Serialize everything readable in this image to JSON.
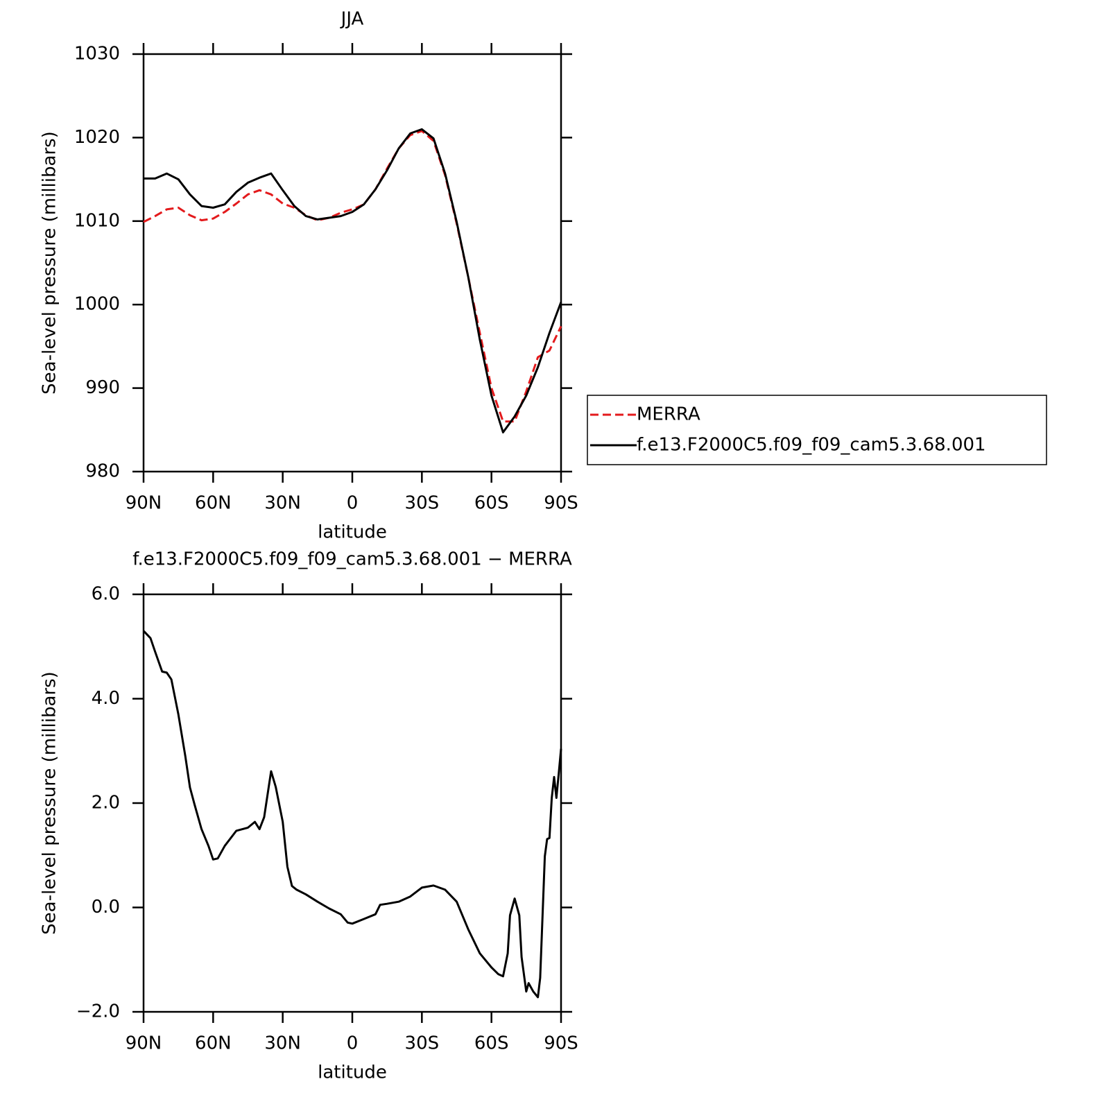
{
  "chart_data": [
    {
      "type": "line",
      "title": "JJA",
      "ylabel": "Sea-level pressure (millibars)",
      "xlabel": "latitude",
      "x": [
        90,
        85,
        80,
        75,
        70,
        65,
        60,
        55,
        50,
        45,
        40,
        35,
        30,
        25,
        20,
        15,
        10,
        5,
        0,
        -5,
        -10,
        -15,
        -20,
        -25,
        -30,
        -35,
        -40,
        -45,
        -50,
        -55,
        -60,
        -65,
        -70,
        -75,
        -80,
        -85,
        -90
      ],
      "series": [
        {
          "name": "MERRA",
          "color": "#e31a1c",
          "dash": "dashed",
          "values": [
            1009.9,
            1010.6,
            1011.4,
            1011.6,
            1010.7,
            1010.1,
            1010.3,
            1011.1,
            1012.1,
            1013.2,
            1013.7,
            1013.2,
            1012.1,
            1011.6,
            1010.7,
            1010.1,
            1010.4,
            1011.0,
            1011.4,
            1012.0,
            1013.8,
            1016.3,
            1018.7,
            1020.3,
            1020.8,
            1019.6,
            1015.5,
            1009.7,
            1003.3,
            996.6,
            990.0,
            986.0,
            986.0,
            989.6,
            993.7,
            994.5,
            997.4
          ]
        },
        {
          "name": "f.e13.F2000C5.f09_f09_cam5.3.68.001",
          "color": "#000000",
          "dash": "solid",
          "values": [
            1015.1,
            1015.1,
            1015.7,
            1015.0,
            1013.2,
            1011.8,
            1011.6,
            1012.0,
            1013.5,
            1014.6,
            1015.2,
            1015.7,
            1013.7,
            1011.8,
            1010.6,
            1010.2,
            1010.4,
            1010.6,
            1011.1,
            1012.0,
            1013.8,
            1016.1,
            1018.7,
            1020.5,
            1021.0,
            1019.9,
            1015.7,
            1009.9,
            1003.3,
            995.8,
            989.1,
            984.7,
            986.6,
            989.1,
            992.5,
            996.6,
            1000.3
          ]
        }
      ],
      "xlim": [
        90,
        -90
      ],
      "xticks": [
        {
          "value": 90,
          "label": "90N"
        },
        {
          "value": 60,
          "label": "60N"
        },
        {
          "value": 30,
          "label": "30N"
        },
        0,
        {
          "value": -30,
          "label": "30S"
        },
        {
          "value": -60,
          "label": "60S"
        },
        {
          "value": -90,
          "label": "90S"
        }
      ],
      "ylim": [
        980,
        1030
      ],
      "yticks": [
        980,
        990,
        1000,
        1010,
        1020,
        1030
      ],
      "legend": "right"
    },
    {
      "type": "line",
      "title": "f.e13.F2000C5.f09_f09_cam5.3.68.001 − MERRA",
      "ylabel": "Sea-level pressure (millibars)",
      "xlabel": "latitude",
      "x": [
        90,
        87,
        85,
        82,
        80,
        78,
        75,
        72,
        70,
        68,
        65,
        62,
        60,
        58,
        55,
        50,
        45,
        42,
        40,
        38,
        35,
        33,
        30,
        28,
        26,
        24,
        20,
        15,
        10,
        5,
        2,
        0,
        -5,
        -10,
        -12,
        -15,
        -20,
        -25,
        -30,
        -35,
        -40,
        -45,
        -50,
        -55,
        -60,
        -63,
        -65,
        -67,
        -68,
        -70,
        -72,
        -73,
        -75,
        -76,
        -78,
        -80,
        -81,
        -83,
        -84,
        -85,
        -86,
        -87,
        -88,
        -89,
        -90
      ],
      "series": [
        {
          "color": "#000000",
          "dash": "solid",
          "values": [
            5.3,
            5.16,
            4.9,
            4.52,
            4.5,
            4.37,
            3.7,
            2.9,
            2.3,
            1.97,
            1.5,
            1.18,
            0.92,
            0.94,
            1.18,
            1.47,
            1.53,
            1.64,
            1.5,
            1.73,
            2.61,
            2.31,
            1.64,
            0.78,
            0.41,
            0.34,
            0.25,
            0.11,
            -0.02,
            -0.13,
            -0.29,
            -0.31,
            -0.22,
            -0.13,
            0.05,
            0.07,
            0.11,
            0.21,
            0.38,
            0.42,
            0.34,
            0.11,
            -0.42,
            -0.88,
            -1.15,
            -1.28,
            -1.32,
            -0.88,
            -0.15,
            0.17,
            -0.15,
            -0.95,
            -1.61,
            -1.45,
            -1.61,
            -1.72,
            -1.35,
            0.98,
            1.31,
            1.33,
            2.1,
            2.5,
            2.1,
            2.57,
            3.04
          ]
        }
      ],
      "xlim": [
        90,
        -90
      ],
      "xticks": [
        {
          "value": 90,
          "label": "90N"
        },
        {
          "value": 60,
          "label": "60N"
        },
        {
          "value": 30,
          "label": "30N"
        },
        0,
        {
          "value": -30,
          "label": "30S"
        },
        {
          "value": -60,
          "label": "60S"
        },
        {
          "value": -90,
          "label": "90S"
        }
      ],
      "ylim": [
        -2,
        6
      ],
      "yticks": [
        {
          "value": -2,
          "label": "−2.0"
        },
        {
          "value": 0,
          "label": "0.0"
        },
        {
          "value": 2,
          "label": "2.0"
        },
        {
          "value": 4,
          "label": "4.0"
        },
        {
          "value": 6,
          "label": "6.0"
        }
      ]
    }
  ]
}
